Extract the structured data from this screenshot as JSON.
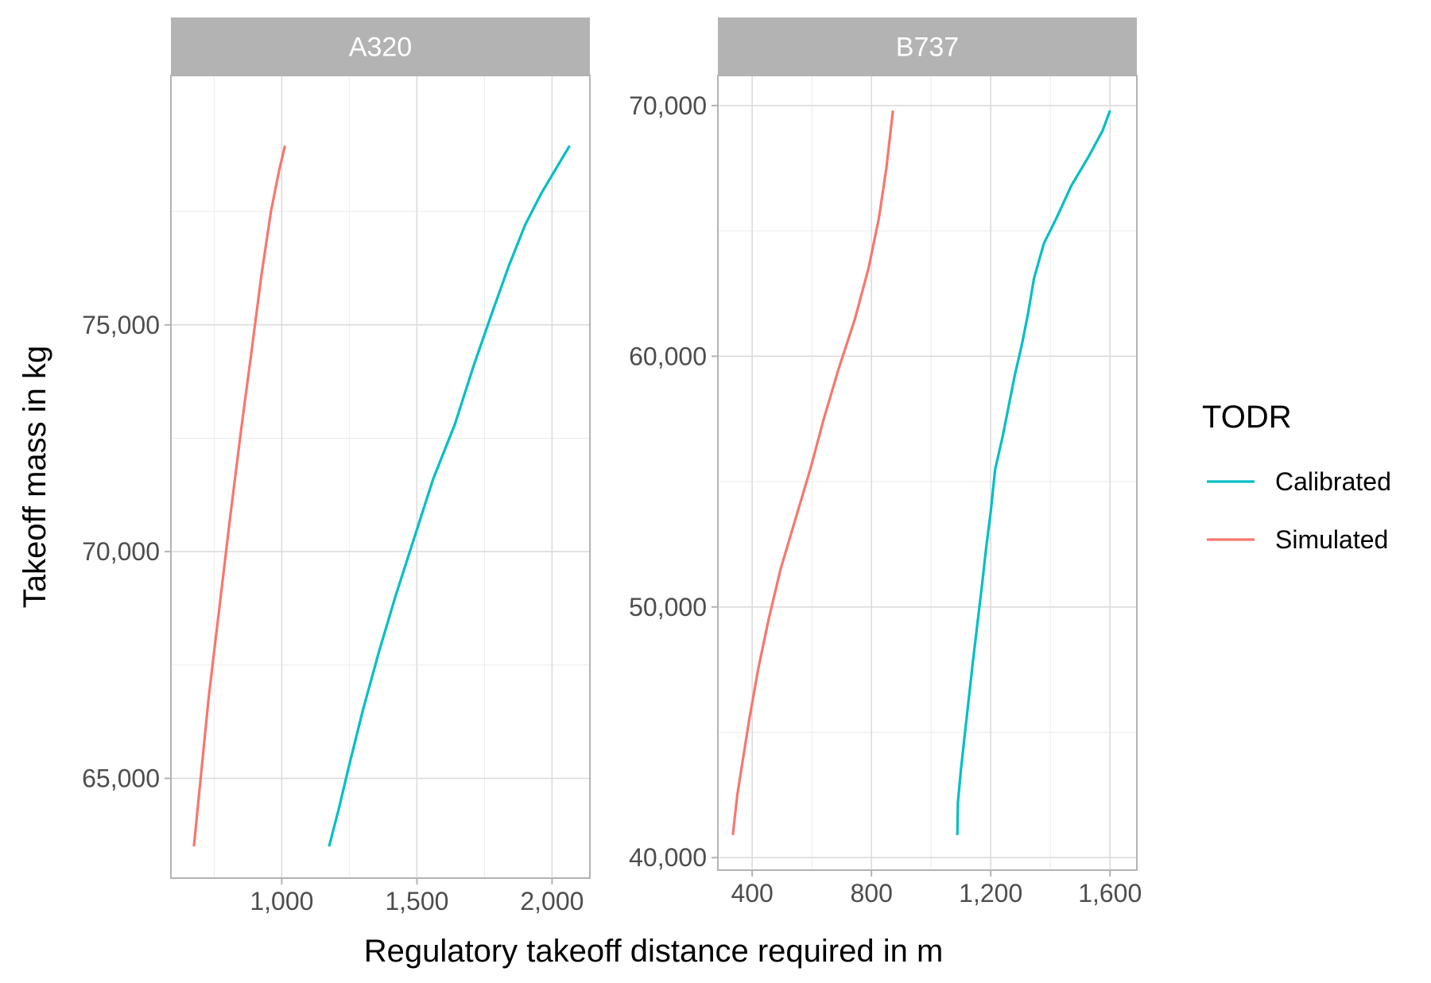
{
  "chart_data": {
    "type": "line",
    "xlabel": "Regulatory takeoff distance required in m",
    "ylabel": "Takeoff mass in kg",
    "grid": true,
    "legend": {
      "title": "TODR",
      "position": "right",
      "entries": [
        {
          "label": "Calibrated",
          "color": "#00BFC4"
        },
        {
          "label": "Simulated",
          "color": "#F8766D"
        }
      ]
    },
    "panels": [
      {
        "name": "A320",
        "xlim": [
          590,
          2140
        ],
        "ylim": [
          62800,
          80500
        ],
        "x_ticks": [
          1000,
          1500,
          2000
        ],
        "x_tick_labels": [
          "1,000",
          "1,500",
          "2,000"
        ],
        "y_ticks": [
          65000,
          70000,
          75000
        ],
        "y_tick_labels": [
          "65,000",
          "70,000",
          "75,000"
        ],
        "series": [
          {
            "name": "Calibrated",
            "color": "#00BFC4",
            "points": [
              [
                1175,
                63500
              ],
              [
                1210,
                64300
              ],
              [
                1250,
                65300
              ],
              [
                1300,
                66500
              ],
              [
                1360,
                67800
              ],
              [
                1420,
                69000
              ],
              [
                1490,
                70300
              ],
              [
                1560,
                71600
              ],
              [
                1640,
                72800
              ],
              [
                1710,
                74100
              ],
              [
                1780,
                75300
              ],
              [
                1840,
                76300
              ],
              [
                1900,
                77200
              ],
              [
                1960,
                77900
              ],
              [
                2020,
                78500
              ],
              [
                2065,
                78950
              ]
            ]
          },
          {
            "name": "Simulated",
            "color": "#F8766D",
            "points": [
              [
                675,
                63500
              ],
              [
                700,
                65000
              ],
              [
                730,
                66800
              ],
              [
                770,
                68800
              ],
              [
                810,
                70800
              ],
              [
                850,
                72700
              ],
              [
                890,
                74500
              ],
              [
                925,
                76100
              ],
              [
                960,
                77500
              ],
              [
                990,
                78400
              ],
              [
                1012,
                78950
              ]
            ]
          }
        ]
      },
      {
        "name": "B737",
        "xlim": [
          285,
          1690
        ],
        "ylim": [
          39500,
          71200
        ],
        "x_ticks": [
          400,
          800,
          1200,
          1600
        ],
        "x_tick_labels": [
          "400",
          "800",
          "1,200",
          "1,600"
        ],
        "y_ticks": [
          40000,
          50000,
          60000,
          70000
        ],
        "y_tick_labels": [
          "40,000",
          "50,000",
          "60,000",
          "70,000"
        ],
        "series": [
          {
            "name": "Calibrated",
            "color": "#00BFC4",
            "points": [
              [
                1088,
                40900
              ],
              [
                1090,
                42200
              ],
              [
                1100,
                43500
              ],
              [
                1112,
                44800
              ],
              [
                1125,
                46200
              ],
              [
                1140,
                47800
              ],
              [
                1155,
                49300
              ],
              [
                1170,
                50800
              ],
              [
                1185,
                52400
              ],
              [
                1200,
                53800
              ],
              [
                1215,
                55500
              ],
              [
                1240,
                56800
              ],
              [
                1260,
                58000
              ],
              [
                1280,
                59200
              ],
              [
                1305,
                60500
              ],
              [
                1325,
                61700
              ],
              [
                1345,
                63100
              ],
              [
                1378,
                64500
              ],
              [
                1420,
                65500
              ],
              [
                1470,
                66800
              ],
              [
                1530,
                68000
              ],
              [
                1575,
                69000
              ],
              [
                1600,
                69800
              ]
            ]
          },
          {
            "name": "Simulated",
            "color": "#F8766D",
            "points": [
              [
                335,
                40900
              ],
              [
                350,
                42500
              ],
              [
                370,
                44000
              ],
              [
                390,
                45500
              ],
              [
                420,
                47500
              ],
              [
                455,
                49500
              ],
              [
                495,
                51500
              ],
              [
                545,
                53500
              ],
              [
                595,
                55500
              ],
              [
                640,
                57500
              ],
              [
                690,
                59500
              ],
              [
                745,
                61500
              ],
              [
                790,
                63500
              ],
              [
                825,
                65500
              ],
              [
                850,
                67500
              ],
              [
                872,
                69800
              ]
            ]
          }
        ]
      }
    ]
  }
}
